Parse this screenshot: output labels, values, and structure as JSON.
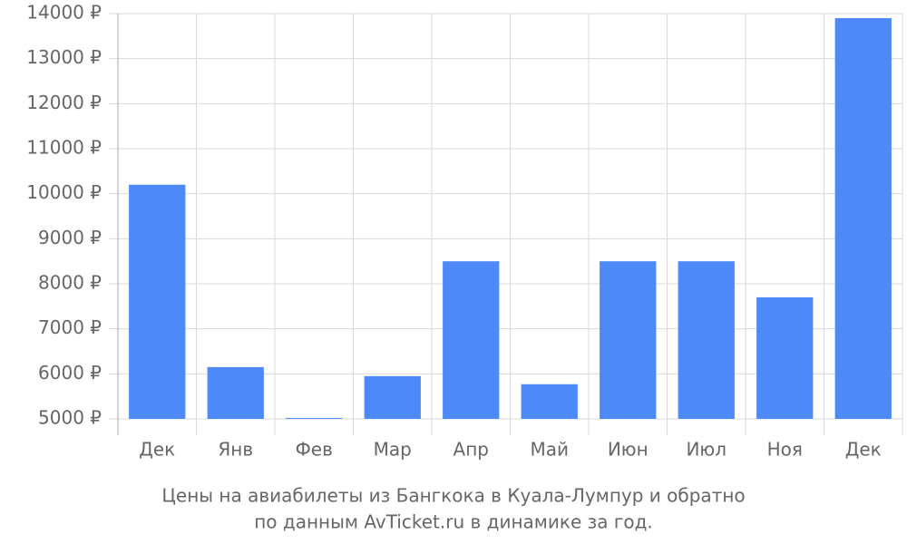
{
  "chart_data": {
    "type": "bar",
    "title": [
      "Цены на авиабилеты из Бангкока в Куала-Лумпур и обратно",
      "по данным AvTicket.ru в динамике за год."
    ],
    "categories": [
      "Дек",
      "Янв",
      "Фев",
      "Мар",
      "Апр",
      "Май",
      "Июн",
      "Июл",
      "Ноя",
      "Дек"
    ],
    "values": [
      10200,
      6150,
      5020,
      5950,
      8500,
      5770,
      8500,
      8500,
      7700,
      13900
    ],
    "color": "#4d89f9",
    "ylim": [
      5000,
      14000
    ],
    "yticks": [
      {
        "value": 5000,
        "label": "5000 ₽"
      },
      {
        "value": 6000,
        "label": "6000 ₽"
      },
      {
        "value": 7000,
        "label": "7000 ₽"
      },
      {
        "value": 8000,
        "label": "8000 ₽"
      },
      {
        "value": 9000,
        "label": "9000 ₽"
      },
      {
        "value": 10000,
        "label": "10000 ₽"
      },
      {
        "value": 11000,
        "label": "11000 ₽"
      },
      {
        "value": 12000,
        "label": "12000 ₽"
      },
      {
        "value": 13000,
        "label": "13000 ₽"
      },
      {
        "value": 14000,
        "label": "14000 ₽"
      }
    ],
    "grid": true
  }
}
